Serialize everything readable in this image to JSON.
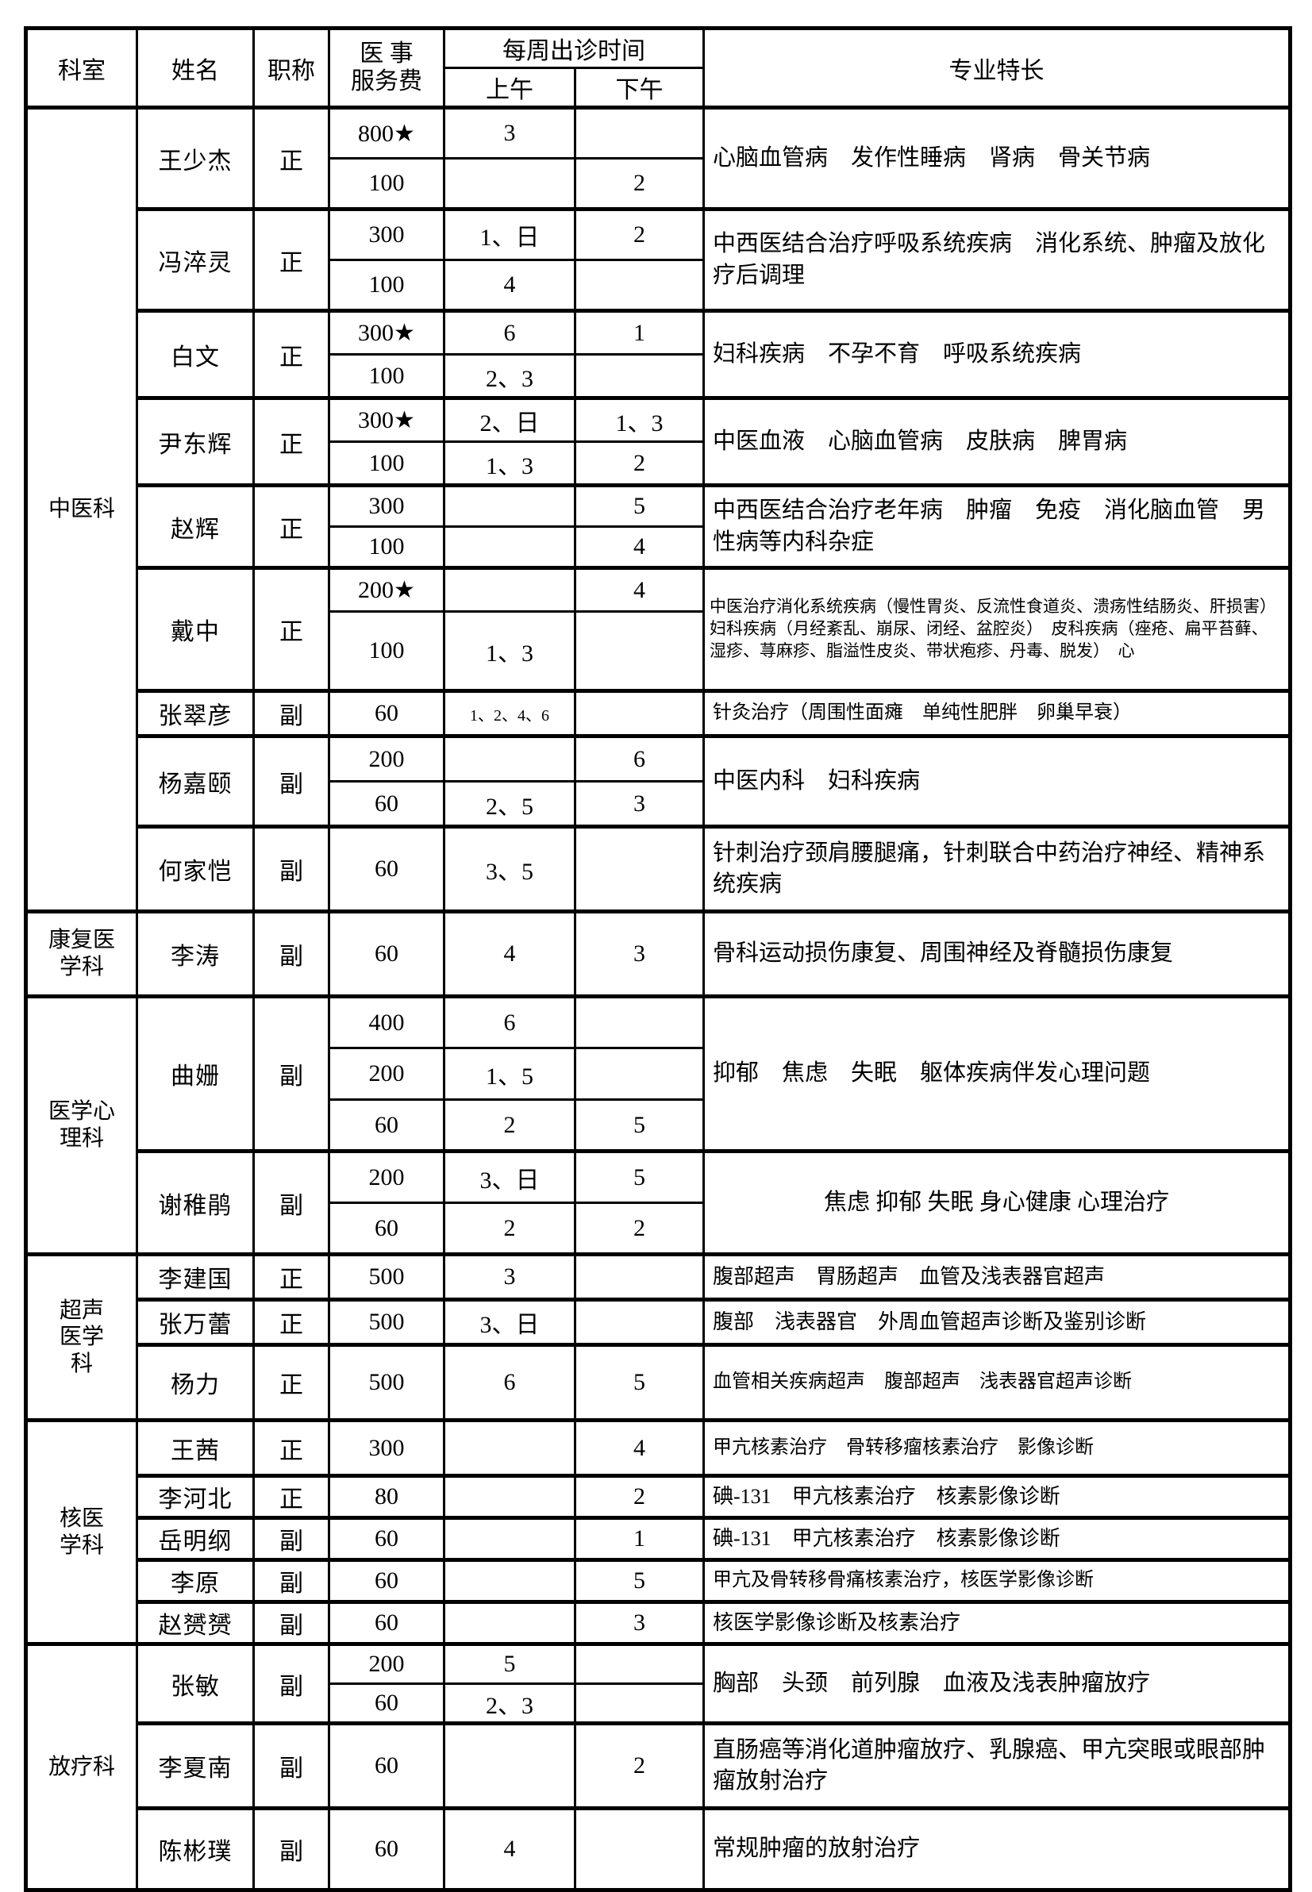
{
  "colors": {
    "border": "#000000",
    "background": "#ffffff",
    "text": "#000000"
  },
  "header": {
    "department": "科室",
    "name": "姓名",
    "title": "职称",
    "fee": "医  事\n服务费",
    "schedule": "每周出诊时间",
    "am": "上午",
    "pm": "下午",
    "specialty": "专业特长"
  },
  "departments": [
    {
      "name": "中医科",
      "doctors": [
        {
          "name": "王少杰",
          "title": "正",
          "specialty": "心脑血管病　发作性睡病　肾病　骨关节病",
          "s_class": "",
          "rows": [
            {
              "fee": "800★",
              "am": "3",
              "pm": "",
              "h": 64
            },
            {
              "fee": "100",
              "am": "",
              "pm": "2",
              "h": 64
            }
          ]
        },
        {
          "name": "冯淬灵",
          "title": "正",
          "specialty": "中西医结合治疗呼吸系统疾病　消化系统、肿瘤及放化疗后调理",
          "s_class": "",
          "rows": [
            {
              "fee": "300",
              "am": "1、日",
              "pm": "2",
              "h": 64
            },
            {
              "fee": "100",
              "am": "4",
              "pm": "",
              "h": 64
            }
          ]
        },
        {
          "name": "白文",
          "title": "正",
          "specialty": "妇科疾病　不孕不育　呼吸系统疾病",
          "s_class": "",
          "rows": [
            {
              "fee": "300★",
              "am": "6",
              "pm": "1",
              "h": 55
            },
            {
              "fee": "100",
              "am": "2、3",
              "pm": "",
              "h": 55
            }
          ]
        },
        {
          "name": "尹东辉",
          "title": "正",
          "specialty": "中医血液　心脑血管病　皮肤病　脾胃病",
          "s_class": "",
          "rows": [
            {
              "fee": "300★",
              "am": "2、日",
              "pm": "1、3",
              "h": 55
            },
            {
              "fee": "100",
              "am": "1、3",
              "pm": "2",
              "h": 55
            }
          ]
        },
        {
          "name": "赵辉",
          "title": "正",
          "specialty": "中西医结合治疗老年病　肿瘤　免疫　消化脑血管　男性病等内科杂症",
          "s_class": "",
          "rows": [
            {
              "fee": "300",
              "am": "",
              "pm": "5",
              "h": 52
            },
            {
              "fee": "100",
              "am": "",
              "pm": "4",
              "h": 52
            }
          ]
        },
        {
          "name": "戴中",
          "title": "正",
          "specialty": "中医治疗消化系统疾病（慢性胃炎、反流性食道炎、溃疡性结肠炎、肝损害）　妇科疾病（月经紊乱、崩尿、闭经、盆腔炎）　皮科疾病（痤疮、扁平苔藓、湿疹、荨麻疹、脂溢性皮炎、带状疱疹、丹毒、脱发）　心",
          "s_class": "xs",
          "rows": [
            {
              "fee": "200★",
              "am": "",
              "pm": "4",
              "h": 55
            },
            {
              "fee": "100",
              "am": "1、3",
              "pm": "",
              "h": 100
            }
          ]
        },
        {
          "name": "张翠彦",
          "title": "副",
          "specialty": "针灸治疗（周围性面瘫　单纯性肥胖　卵巢早衰）",
          "s_class": "sm2",
          "rows": [
            {
              "fee": "60",
              "am": "1、2、4、6",
              "pm": "",
              "h": 57,
              "am_class": "xsnum"
            }
          ]
        },
        {
          "name": "杨嘉颐",
          "title": "副",
          "specialty": "中医内科　妇科疾病",
          "s_class": "",
          "rows": [
            {
              "fee": "200",
              "am": "",
              "pm": "6",
              "h": 57
            },
            {
              "fee": "60",
              "am": "2、5",
              "pm": "3",
              "h": 57
            }
          ]
        },
        {
          "name": "何家恺",
          "title": "副",
          "specialty": "针刺治疗颈肩腰腿痛，针刺联合中药治疗神经、精神系统疾病",
          "s_class": "",
          "rows": [
            {
              "fee": "60",
              "am": "3、5",
              "pm": "",
              "h": 107
            }
          ]
        }
      ]
    },
    {
      "name": "康复医\n学科",
      "doctors": [
        {
          "name": "李涛",
          "title": "副",
          "specialty": "骨科运动损伤康复、周围神经及脊髓损伤康复",
          "s_class": "",
          "rows": [
            {
              "fee": "60",
              "am": "4",
              "pm": "3",
              "h": 107
            }
          ]
        }
      ]
    },
    {
      "name": "医学心\n理科",
      "doctors": [
        {
          "name": "曲姗",
          "title": "副",
          "specialty": "抑郁　焦虑　失眠　躯体疾病伴发心理问题",
          "s_class": "",
          "rows": [
            {
              "fee": "400",
              "am": "6",
              "pm": "",
              "h": 65
            },
            {
              "fee": "200",
              "am": "1、5",
              "pm": "",
              "h": 65
            },
            {
              "fee": "60",
              "am": "2",
              "pm": "5",
              "h": 65
            }
          ]
        },
        {
          "name": "谢稚鹃",
          "title": "副",
          "specialty": "焦虑 抑郁 失眠 身心健康 心理治疗",
          "s_class": "ctr",
          "rows": [
            {
              "fee": "200",
              "am": "3、日",
              "pm": "5",
              "h": 65
            },
            {
              "fee": "60",
              "am": "2",
              "pm": "2",
              "h": 65
            }
          ]
        }
      ]
    },
    {
      "name": "超声\n医学\n科",
      "doctors": [
        {
          "name": "李建国",
          "title": "正",
          "specialty": "腹部超声　胃肠超声　血管及浅表器官超声",
          "s_class": "sm",
          "rows": [
            {
              "fee": "500",
              "am": "3",
              "pm": "",
              "h": 57
            }
          ]
        },
        {
          "name": "张万蕾",
          "title": "正",
          "specialty": "腹部　浅表器官　外周血管超声诊断及鉴别诊断",
          "s_class": "sm",
          "rows": [
            {
              "fee": "500",
              "am": "3、日",
              "pm": "",
              "h": 57
            }
          ]
        },
        {
          "name": "杨力",
          "title": "正",
          "specialty": "血管相关疾病超声　腹部超声　浅表器官超声诊断",
          "s_class": "sm2",
          "rows": [
            {
              "fee": "500",
              "am": "6",
              "pm": "5",
              "h": 95
            }
          ]
        }
      ]
    },
    {
      "name": "核医\n学科",
      "doctors": [
        {
          "name": "王茜",
          "title": "正",
          "specialty": "甲亢核素治疗　骨转移瘤核素治疗　影像诊断",
          "s_class": "sm2",
          "rows": [
            {
              "fee": "300",
              "am": "",
              "pm": "4",
              "h": 70
            }
          ]
        },
        {
          "name": "李河北",
          "title": "正",
          "specialty": "碘-131　甲亢核素治疗　核素影像诊断",
          "s_class": "sm",
          "rows": [
            {
              "fee": "80",
              "am": "",
              "pm": "2",
              "h": 53
            }
          ]
        },
        {
          "name": "岳明纲",
          "title": "副",
          "specialty": "碘-131　甲亢核素治疗　核素影像诊断",
          "s_class": "sm",
          "rows": [
            {
              "fee": "60",
              "am": "",
              "pm": "1",
              "h": 53
            }
          ]
        },
        {
          "name": "李原",
          "title": "副",
          "specialty": "甲亢及骨转移骨痛核素治疗，核医学影像诊断",
          "s_class": "sm2",
          "rows": [
            {
              "fee": "60",
              "am": "",
              "pm": "5",
              "h": 53
            }
          ]
        },
        {
          "name": "赵赟赟",
          "title": "副",
          "specialty": "核医学影像诊断及核素治疗",
          "s_class": "sm",
          "rows": [
            {
              "fee": "60",
              "am": "",
              "pm": "3",
              "h": 53
            }
          ]
        }
      ]
    },
    {
      "name": "放疗科",
      "doctors": [
        {
          "name": "张敏",
          "title": "副",
          "specialty": "胸部　头颈　前列腺　血液及浅表肿瘤放疗",
          "s_class": "",
          "rows": [
            {
              "fee": "200",
              "am": "5",
              "pm": "",
              "h": 50
            },
            {
              "fee": "60",
              "am": "2、3",
              "pm": "",
              "h": 50
            }
          ]
        },
        {
          "name": "李夏南",
          "title": "副",
          "specialty": "直肠癌等消化道肿瘤放疗、乳腺癌、甲亢突眼或眼部肿瘤放射治疗",
          "s_class": "",
          "rows": [
            {
              "fee": "60",
              "am": "",
              "pm": "2",
              "h": 107
            }
          ]
        },
        {
          "name": "陈彬璞",
          "title": "副",
          "specialty": "常规肿瘤的放射治疗",
          "s_class": "",
          "rows": [
            {
              "fee": "60",
              "am": "4",
              "pm": "",
              "h": 103
            }
          ]
        }
      ]
    }
  ]
}
